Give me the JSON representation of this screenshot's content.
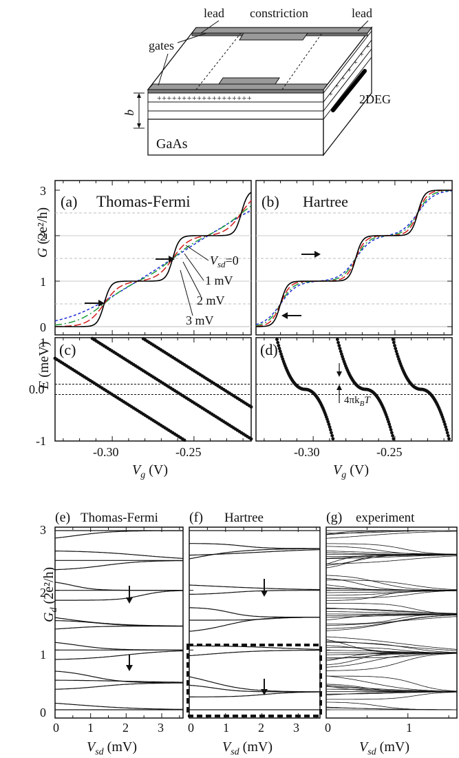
{
  "schematic": {
    "label_lead_left": "lead",
    "label_constriction": "constriction",
    "label_lead_right": "lead",
    "label_gates": "gates",
    "label_2deg": "2DEG",
    "label_b": "b",
    "label_gaas": "GaAs",
    "doping_signs": "+++++++++++++++++++"
  },
  "panel_a": {
    "letter": "(a)",
    "title": "Thomas-Fermi"
  },
  "panel_b": {
    "letter": "(b)",
    "title": "Hartree"
  },
  "panel_c": {
    "letter": "(c)"
  },
  "panel_d": {
    "letter": "(d)",
    "annotation": "4πk",
    "annotation_sub": "B",
    "annotation_end": "T"
  },
  "vsd_labels": {
    "v0": "=0",
    "v1": "1 mV",
    "v2": "2 mV",
    "v3": "3 mV"
  },
  "axes_top": {
    "g_label": "G",
    "g_unit": " (2e²/h)",
    "e_label": "E",
    "e_unit": " (meV)",
    "x_label": "V",
    "x_sub": "g",
    "x_unit": " (V)",
    "g_ticks": [
      "0",
      "1",
      "2",
      "3"
    ],
    "e_ticks": [
      "1",
      "0.0",
      "-1"
    ],
    "x_ticks": [
      "-0.30",
      "-0.25"
    ]
  },
  "panel_e": {
    "letter": "(e)",
    "title": "Thomas-Fermi"
  },
  "panel_f": {
    "letter": "(f)",
    "title": "Hartree"
  },
  "panel_g": {
    "letter": "(g)",
    "title": "experiment"
  },
  "axes_bottom": {
    "gd_label": "G",
    "gd_sub": "d",
    "gd_unit": " (2e²/h)",
    "vsd_label": "V",
    "vsd_sub": "sd",
    "vsd_unit": " (mV)",
    "gd_ticks": [
      "0",
      "1",
      "2",
      "3"
    ],
    "ef_ticks": [
      "0",
      "1",
      "2",
      "3"
    ],
    "g_ticks": [
      "0",
      "1"
    ]
  },
  "chart_data": [
    {
      "type": "line",
      "id": "a",
      "xlim": [
        -0.335,
        -0.215
      ],
      "ylim": [
        0,
        3
      ],
      "x_ticks": [
        -0.3,
        -0.25
      ],
      "y_ticks": [
        0,
        1,
        2,
        3
      ],
      "series": [
        {
          "name": "V_sd=0",
          "color": "#000000",
          "steps": [
            -0.305,
            -0.263,
            -0.221
          ],
          "width": 0.002
        },
        {
          "name": "1 mV",
          "color": "#d01818",
          "steps": [
            -0.305,
            -0.263,
            -0.221
          ],
          "width": 0.005
        },
        {
          "name": "2 mV",
          "color": "#1a9a3a",
          "steps": [
            -0.305,
            -0.263,
            -0.221
          ],
          "width": 0.009
        },
        {
          "name": "3 mV",
          "color": "#1f2bd6",
          "steps": [
            -0.305,
            -0.263,
            -0.221
          ],
          "width": 0.015
        }
      ]
    },
    {
      "type": "line",
      "id": "b",
      "xlim": [
        -0.335,
        -0.215
      ],
      "ylim": [
        0,
        3
      ],
      "series": [
        {
          "name": "V_sd=0",
          "color": "#000000",
          "steps": [
            -0.32,
            -0.274,
            -0.236
          ],
          "width": 0.002
        },
        {
          "name": "1 mV",
          "color": "#d01818",
          "steps": [
            -0.32,
            -0.274,
            -0.236
          ],
          "width": 0.003
        },
        {
          "name": "2 mV",
          "color": "#1a9a3a",
          "steps": [
            -0.32,
            -0.274,
            -0.236
          ],
          "width": 0.004
        },
        {
          "name": "3 mV",
          "color": "#1f2bd6",
          "steps": [
            -0.32,
            -0.274,
            -0.236
          ],
          "width": 0.005
        }
      ]
    },
    {
      "type": "scatter",
      "id": "c",
      "xlim": [
        -0.335,
        -0.215
      ],
      "ylim": [
        -1,
        1
      ],
      "levels": [
        {
          "x_at_zero": -0.305,
          "slope": -20
        },
        {
          "x_at_zero": -0.263,
          "slope": -20
        },
        {
          "x_at_zero": -0.232,
          "slope": -20
        }
      ]
    },
    {
      "type": "scatter",
      "id": "d",
      "xlim": [
        -0.335,
        -0.215
      ],
      "ylim": [
        -1,
        1
      ],
      "pinned_band": 0.1,
      "levels": [
        {
          "x_at_zero": -0.305
        },
        {
          "x_at_zero": -0.268
        },
        {
          "x_at_zero": -0.234
        }
      ]
    },
    {
      "type": "line",
      "id": "e",
      "xlim": [
        0,
        3.6
      ],
      "ylim": [
        0,
        3
      ],
      "x_ticks": [
        0,
        1,
        2,
        3
      ],
      "y_ticks": [
        0,
        1,
        2,
        3
      ],
      "curve_count": 19
    },
    {
      "type": "line",
      "id": "f",
      "xlim": [
        0,
        3.6
      ],
      "ylim": [
        0,
        3
      ],
      "x_ticks": [
        0,
        1,
        2,
        3
      ],
      "curve_count": 15
    },
    {
      "type": "line",
      "id": "g",
      "xlim": [
        0,
        1.6
      ],
      "ylim": [
        0,
        3
      ],
      "x_ticks": [
        0,
        1
      ],
      "curve_count": 70
    }
  ]
}
